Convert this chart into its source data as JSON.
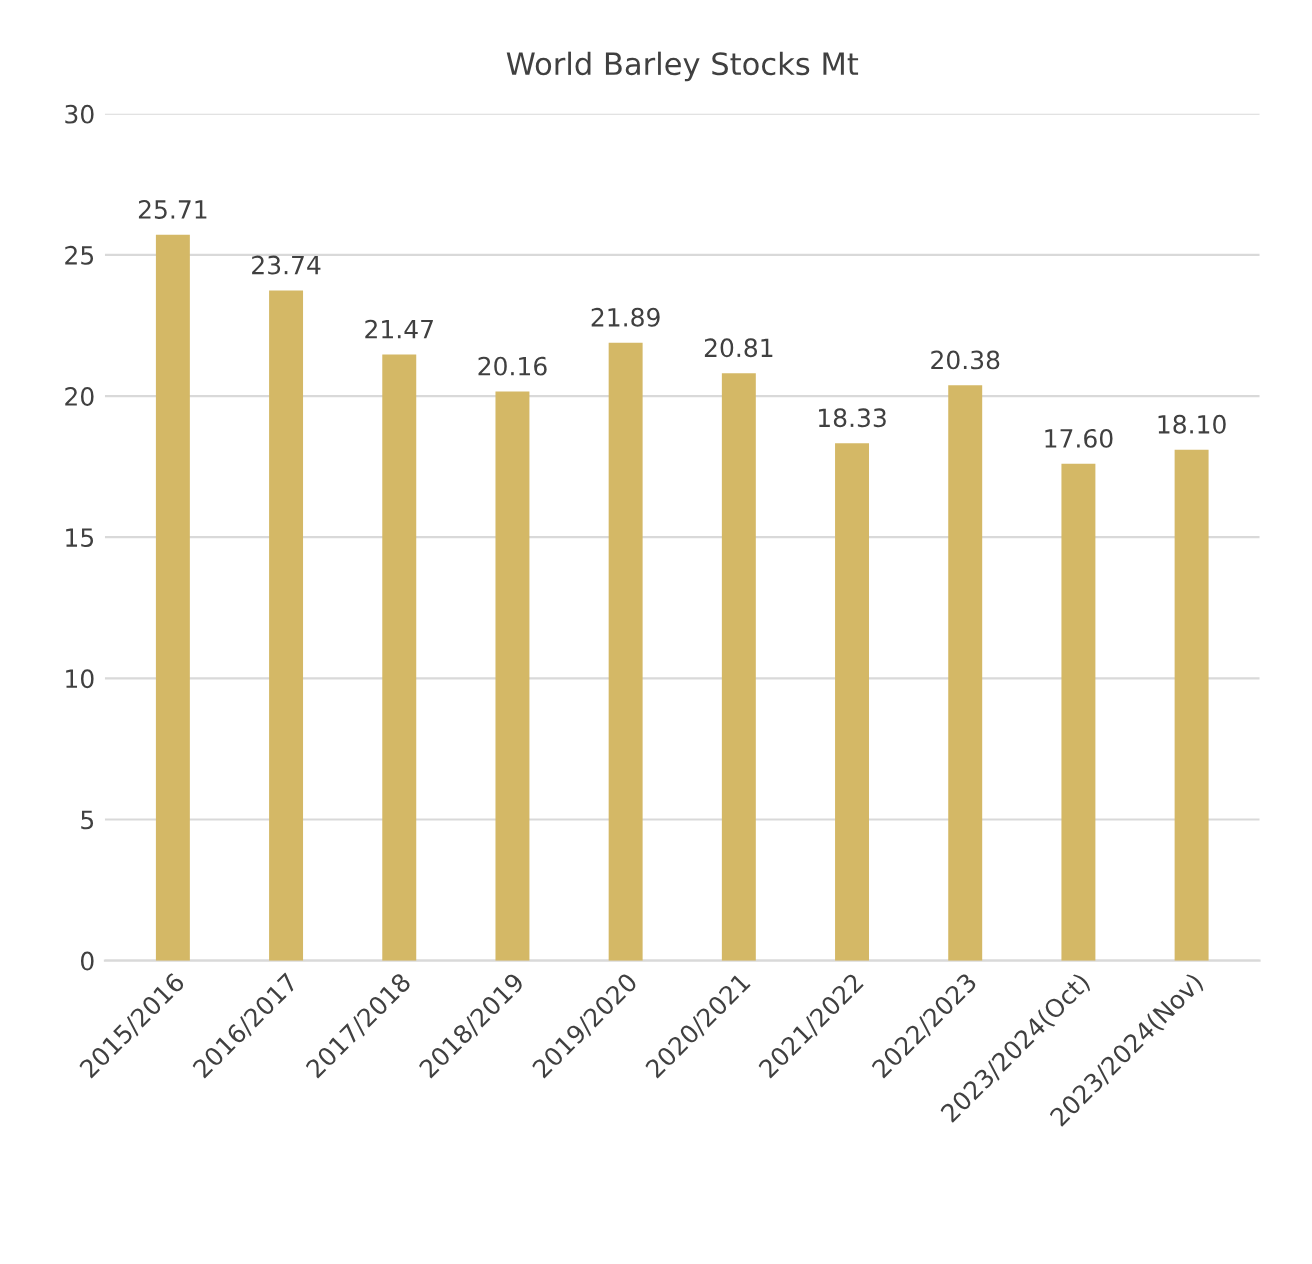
{
  "chart_data": {
    "type": "bar",
    "title": "World Barley Stocks Mt",
    "categories": [
      "2015/2016",
      "2016/2017",
      "2017/2018",
      "2018/2019",
      "2019/2020",
      "2020/2021",
      "2021/2022",
      "2022/2023",
      "2023/2024(Oct)",
      "2023/2024(Nov)"
    ],
    "values": [
      25.71,
      23.74,
      21.47,
      20.16,
      21.89,
      20.81,
      18.33,
      20.38,
      17.6,
      18.1
    ],
    "value_labels": [
      "25.71",
      "23.74",
      "21.47",
      "20.16",
      "21.89",
      "20.81",
      "18.33",
      "20.38",
      "17.60",
      "18.10"
    ],
    "color": "#d4b866",
    "ylim": [
      0,
      30
    ],
    "yticks": [
      0,
      5,
      10,
      15,
      20,
      25,
      30
    ],
    "grid": "y",
    "legend": false
  }
}
